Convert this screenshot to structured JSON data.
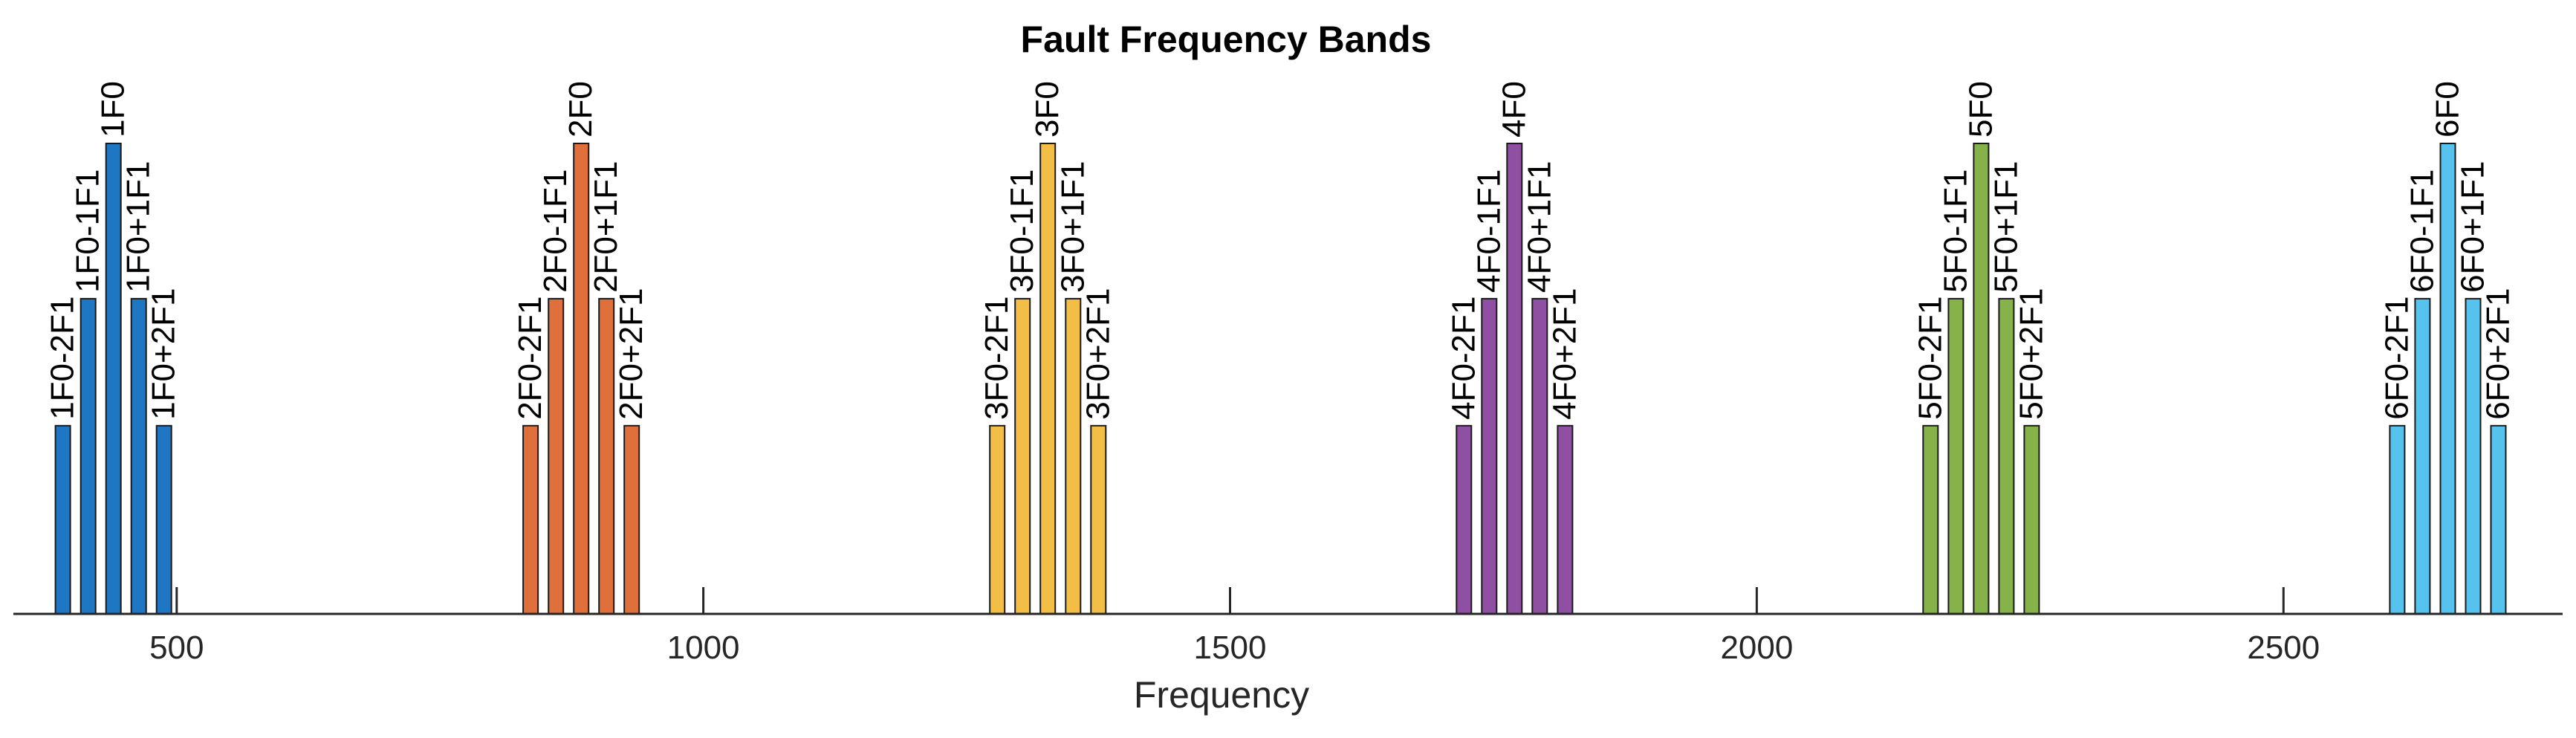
{
  "chart_data": {
    "type": "bar",
    "title": "Fault Frequency Bands",
    "xlabel": "Frequency",
    "ylabel": "",
    "xlim": [
      345,
      2765
    ],
    "ylim": [
      0,
      1
    ],
    "xticks": [
      500,
      1000,
      1500,
      2000,
      2500
    ],
    "legend": "none",
    "grid": false,
    "groups": [
      {
        "color": "#1f77c4",
        "bars": [
          {
            "label": "1F0-2F1",
            "x": 392,
            "value": 0.4
          },
          {
            "label": "1F0-1F1",
            "x": 416,
            "value": 0.67
          },
          {
            "label": "1F0",
            "x": 440,
            "value": 1.0
          },
          {
            "label": "1F0+1F1",
            "x": 464,
            "value": 0.67
          },
          {
            "label": "1F0+2F1",
            "x": 488,
            "value": 0.4
          }
        ]
      },
      {
        "color": "#e0703b",
        "bars": [
          {
            "label": "2F0-2F1",
            "x": 836,
            "value": 0.4
          },
          {
            "label": "2F0-1F1",
            "x": 860,
            "value": 0.67
          },
          {
            "label": "2F0",
            "x": 884,
            "value": 1.0
          },
          {
            "label": "2F0+1F1",
            "x": 908,
            "value": 0.67
          },
          {
            "label": "2F0+2F1",
            "x": 932,
            "value": 0.4
          }
        ]
      },
      {
        "color": "#f3be45",
        "bars": [
          {
            "label": "3F0-2F1",
            "x": 1279,
            "value": 0.4
          },
          {
            "label": "3F0-1F1",
            "x": 1303,
            "value": 0.67
          },
          {
            "label": "3F0",
            "x": 1327,
            "value": 1.0
          },
          {
            "label": "3F0+1F1",
            "x": 1351,
            "value": 0.67
          },
          {
            "label": "3F0+2F1",
            "x": 1375,
            "value": 0.4
          }
        ]
      },
      {
        "color": "#8f4fa3",
        "bars": [
          {
            "label": "4F0-2F1",
            "x": 1722,
            "value": 0.4
          },
          {
            "label": "4F0-1F1",
            "x": 1746,
            "value": 0.67
          },
          {
            "label": "4F0",
            "x": 1770,
            "value": 1.0
          },
          {
            "label": "4F0+1F1",
            "x": 1794,
            "value": 0.67
          },
          {
            "label": "4F0+2F1",
            "x": 1818,
            "value": 0.4
          }
        ]
      },
      {
        "color": "#86b24a",
        "bars": [
          {
            "label": "5F0-2F1",
            "x": 2165,
            "value": 0.4
          },
          {
            "label": "5F0-1F1",
            "x": 2189,
            "value": 0.67
          },
          {
            "label": "5F0",
            "x": 2213,
            "value": 1.0
          },
          {
            "label": "5F0+1F1",
            "x": 2237,
            "value": 0.67
          },
          {
            "label": "5F0+2F1",
            "x": 2261,
            "value": 0.4
          }
        ]
      },
      {
        "color": "#56c3ef",
        "bars": [
          {
            "label": "6F0-2F1",
            "x": 2608,
            "value": 0.4
          },
          {
            "label": "6F0-1F1",
            "x": 2632,
            "value": 0.67
          },
          {
            "label": "6F0",
            "x": 2656,
            "value": 1.0
          },
          {
            "label": "6F0+1F1",
            "x": 2680,
            "value": 0.67
          },
          {
            "label": "6F0+2F1",
            "x": 2704,
            "value": 0.4
          }
        ]
      }
    ]
  }
}
